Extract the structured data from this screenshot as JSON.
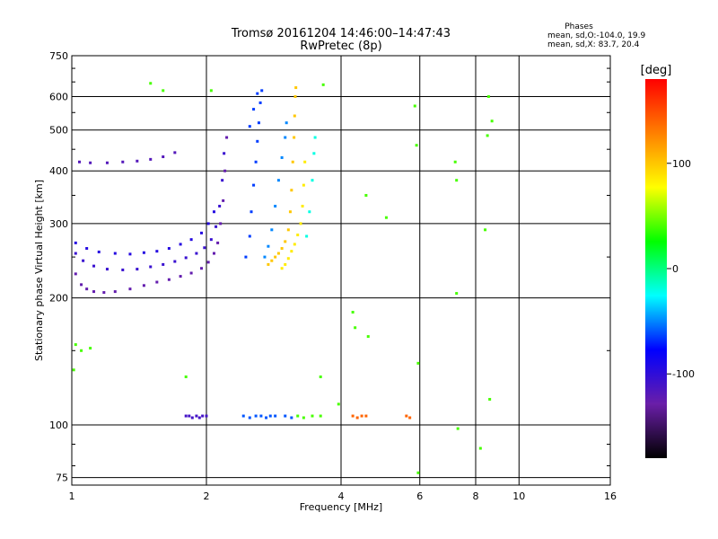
{
  "chart_data": {
    "type": "scatter",
    "title": "Tromsø 20161204 14:46:00–14:47:43",
    "subtitle": "RwPretec (8p)",
    "xlabel": "Frequency [MHz]",
    "ylabel": "Stationary phase Virtual Height [km]",
    "x_scale": "log",
    "y_scale": "log",
    "xlim": [
      1,
      16
    ],
    "ylim": [
      72,
      750
    ],
    "x_ticks": [
      1,
      2,
      4,
      6,
      8,
      10,
      16
    ],
    "x_tick_labels": [
      "1",
      "2",
      "4",
      "6",
      "8",
      "10",
      "16"
    ],
    "y_ticks": [
      75,
      100,
      200,
      300,
      400,
      500,
      600,
      750
    ],
    "y_tick_labels": [
      "75",
      "100",
      "200",
      "300",
      "400",
      "500",
      "600",
      "750"
    ],
    "grid": true,
    "legend": {
      "title": "Phases",
      "lines": [
        "mean, sd,O:-104.0, 19.9",
        "mean, sd,X: 83.7, 20.4"
      ],
      "placement": "top-right"
    },
    "colorbar": {
      "label": "[deg]",
      "range": [
        -180,
        180
      ],
      "ticks": [
        100,
        0,
        -100
      ],
      "tick_labels": [
        "100",
        "0",
        "-100"
      ],
      "colors": [
        "#000000",
        "#6a1ea8",
        "#0000ff",
        "#00ffff",
        "#00ff00",
        "#ffff00",
        "#ff8000",
        "#ff0000"
      ]
    },
    "series": [
      {
        "points": [
          [
            1.02,
            228
          ],
          [
            1.05,
            215
          ],
          [
            1.08,
            210
          ],
          [
            1.12,
            207
          ],
          [
            1.18,
            206
          ],
          [
            1.25,
            207
          ],
          [
            1.35,
            210
          ],
          [
            1.45,
            214
          ],
          [
            1.55,
            218
          ],
          [
            1.65,
            221
          ],
          [
            1.75,
            225
          ],
          [
            1.85,
            229
          ],
          [
            1.95,
            235
          ],
          [
            2.02,
            243
          ],
          [
            2.08,
            255
          ],
          [
            2.12,
            270
          ],
          [
            2.15,
            300
          ],
          [
            2.18,
            340
          ],
          [
            2.2,
            400
          ],
          [
            2.22,
            480
          ]
        ],
        "phase": -125
      },
      {
        "points": [
          [
            1.02,
            255
          ],
          [
            1.06,
            245
          ],
          [
            1.12,
            238
          ],
          [
            1.2,
            234
          ],
          [
            1.3,
            233
          ],
          [
            1.4,
            234
          ],
          [
            1.5,
            237
          ],
          [
            1.6,
            240
          ],
          [
            1.7,
            244
          ],
          [
            1.8,
            249
          ],
          [
            1.9,
            255
          ],
          [
            1.98,
            263
          ],
          [
            2.05,
            275
          ],
          [
            2.1,
            295
          ],
          [
            2.14,
            330
          ],
          [
            2.17,
            380
          ],
          [
            2.19,
            440
          ]
        ],
        "phase": -105
      },
      {
        "points": [
          [
            1.02,
            270
          ],
          [
            1.08,
            262
          ],
          [
            1.15,
            257
          ],
          [
            1.25,
            255
          ],
          [
            1.35,
            254
          ],
          [
            1.45,
            256
          ],
          [
            1.55,
            258
          ],
          [
            1.65,
            262
          ],
          [
            1.75,
            268
          ],
          [
            1.85,
            275
          ],
          [
            1.95,
            285
          ],
          [
            2.02,
            300
          ],
          [
            2.08,
            320
          ]
        ],
        "phase": -95
      },
      {
        "points": [
          [
            1.04,
            420
          ],
          [
            1.1,
            418
          ],
          [
            1.2,
            418
          ],
          [
            1.3,
            420
          ],
          [
            1.4,
            422
          ],
          [
            1.5,
            426
          ],
          [
            1.6,
            432
          ],
          [
            1.7,
            442
          ]
        ],
        "phase": -118
      },
      {
        "points": [
          [
            1.8,
            105
          ],
          [
            1.83,
            105
          ],
          [
            1.86,
            104
          ],
          [
            1.9,
            105
          ],
          [
            1.93,
            104
          ],
          [
            1.96,
            105
          ],
          [
            2.0,
            105
          ]
        ],
        "phase": -110
      },
      {
        "points": [
          [
            2.42,
            105
          ],
          [
            2.5,
            104
          ],
          [
            2.58,
            105
          ],
          [
            2.65,
            105
          ],
          [
            2.72,
            104
          ],
          [
            2.78,
            105
          ],
          [
            2.85,
            105
          ],
          [
            3.0,
            105
          ],
          [
            3.1,
            104
          ]
        ],
        "phase": -60
      },
      {
        "points": [
          [
            3.2,
            105
          ],
          [
            3.3,
            104
          ],
          [
            3.45,
            105
          ],
          [
            3.6,
            105
          ]
        ],
        "phase": 40
      },
      {
        "points": [
          [
            4.25,
            105
          ],
          [
            4.35,
            104
          ],
          [
            4.45,
            105
          ],
          [
            4.55,
            105
          ],
          [
            5.6,
            105
          ],
          [
            5.7,
            104
          ]
        ],
        "phase": 140
      },
      {
        "points": [
          [
            2.45,
            250
          ],
          [
            2.5,
            280
          ],
          [
            2.52,
            320
          ],
          [
            2.55,
            370
          ],
          [
            2.58,
            420
          ],
          [
            2.6,
            470
          ],
          [
            2.62,
            520
          ],
          [
            2.64,
            580
          ],
          [
            2.66,
            620
          ],
          [
            2.5,
            510
          ],
          [
            2.55,
            560
          ],
          [
            2.6,
            610
          ]
        ],
        "phase": -65
      },
      {
        "points": [
          [
            2.7,
            250
          ],
          [
            2.75,
            265
          ],
          [
            2.8,
            290
          ],
          [
            2.85,
            330
          ],
          [
            2.9,
            380
          ],
          [
            2.95,
            430
          ],
          [
            3.0,
            480
          ],
          [
            3.02,
            520
          ]
        ],
        "phase": -50
      },
      {
        "points": [
          [
            2.75,
            240
          ],
          [
            2.8,
            245
          ],
          [
            2.85,
            250
          ],
          [
            2.9,
            255
          ],
          [
            2.95,
            262
          ],
          [
            3.0,
            272
          ],
          [
            3.05,
            290
          ],
          [
            3.08,
            320
          ],
          [
            3.1,
            360
          ],
          [
            3.12,
            420
          ],
          [
            3.14,
            480
          ],
          [
            3.15,
            540
          ],
          [
            3.16,
            600
          ],
          [
            3.17,
            630
          ]
        ],
        "phase": 100
      },
      {
        "points": [
          [
            2.95,
            235
          ],
          [
            3.0,
            240
          ],
          [
            3.05,
            248
          ],
          [
            3.1,
            258
          ],
          [
            3.15,
            268
          ],
          [
            3.2,
            282
          ],
          [
            3.25,
            300
          ],
          [
            3.28,
            330
          ],
          [
            3.3,
            370
          ],
          [
            3.32,
            420
          ]
        ],
        "phase": 85
      },
      {
        "points": [
          [
            3.35,
            280
          ],
          [
            3.4,
            320
          ],
          [
            3.45,
            380
          ],
          [
            3.48,
            440
          ],
          [
            3.5,
            480
          ]
        ],
        "phase": -20
      },
      {
        "points": [
          [
            1.02,
            155
          ],
          [
            1.05,
            150
          ],
          [
            1.1,
            152
          ],
          [
            1.01,
            135
          ],
          [
            1.5,
            645
          ],
          [
            1.6,
            620
          ],
          [
            2.05,
            620
          ],
          [
            3.65,
            640
          ],
          [
            4.55,
            350
          ],
          [
            5.05,
            310
          ],
          [
            5.85,
            570
          ],
          [
            5.9,
            460
          ],
          [
            5.95,
            140
          ],
          [
            7.2,
            420
          ],
          [
            7.25,
            380
          ],
          [
            7.25,
            205
          ],
          [
            7.3,
            98
          ],
          [
            8.4,
            290
          ],
          [
            8.5,
            485
          ],
          [
            8.55,
            600
          ],
          [
            8.7,
            525
          ],
          [
            8.6,
            115
          ],
          [
            8.2,
            88
          ],
          [
            4.25,
            185
          ],
          [
            4.3,
            170
          ],
          [
            4.6,
            162
          ],
          [
            3.95,
            112
          ],
          [
            3.6,
            130
          ],
          [
            5.95,
            77
          ],
          [
            1.8,
            130
          ]
        ],
        "phase": 40
      }
    ]
  }
}
